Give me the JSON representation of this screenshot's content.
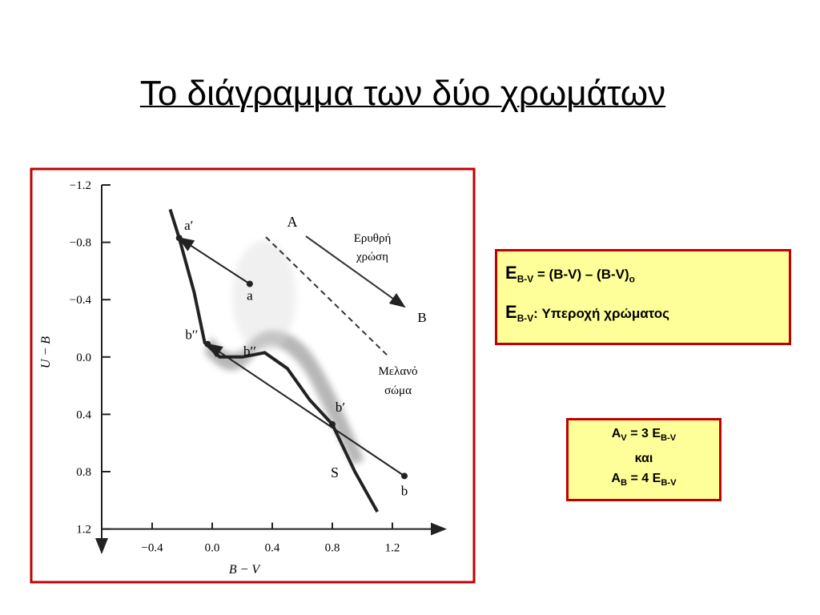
{
  "header": {
    "title": "Το διάγραμμα των δύο χρωμάτων"
  },
  "chart_data": {
    "type": "scatter",
    "x_label": "B − V",
    "y_label": "U − B",
    "xlim": [
      -0.74,
      1.58
    ],
    "ylim": [
      -1.2,
      1.4
    ],
    "y_inverted": true,
    "xticks": [
      {
        "value": -0.4,
        "label": "−0.4"
      },
      {
        "value": 0,
        "label": "0.0"
      },
      {
        "value": 0.4,
        "label": "0.4"
      },
      {
        "value": 0.8,
        "label": "0.8"
      },
      {
        "value": 1.2,
        "label": "1.2"
      }
    ],
    "yticks": [
      {
        "value": -1.2,
        "label": "−1.2"
      },
      {
        "value": -0.8,
        "label": "−0.8"
      },
      {
        "value": -0.4,
        "label": "−0.4"
      },
      {
        "value": 0,
        "label": "0.0"
      },
      {
        "value": 0.4,
        "label": "0.4"
      },
      {
        "value": 0.8,
        "label": "0.8"
      },
      {
        "value": 1.2,
        "label": "1.2"
      }
    ],
    "points": [
      {
        "label": "a",
        "x": 0.25,
        "y": -0.51
      },
      {
        "label": "a′",
        "x": -0.22,
        "y": -0.83
      },
      {
        "label": "b",
        "x": 1.28,
        "y": 0.83
      },
      {
        "label": "b′",
        "x": 0.8,
        "y": 0.47
      },
      {
        "label": "b′′",
        "x": -0.03,
        "y": -0.09
      }
    ],
    "curve": {
      "x": [
        -0.28,
        -0.22,
        -0.12,
        -0.05,
        0.05,
        0.2,
        0.35,
        0.5,
        0.65,
        0.8,
        0.95,
        1.1
      ],
      "y": [
        -1.03,
        -0.83,
        -0.45,
        -0.1,
        0.0,
        0.0,
        -0.03,
        0.08,
        0.3,
        0.47,
        0.8,
        1.08
      ]
    },
    "annotations": [
      "A",
      "B",
      "Ερυθρή",
      "χρώση",
      "Μελανό",
      "σώμα",
      "S",
      "b′′"
    ]
  },
  "boxes": [
    {
      "lines": [
        [
          "E",
          "B-V",
          " = (B-V) – (B-V)",
          "o"
        ],
        [
          "E",
          "B-V",
          ": Υπεροχή χρώματος"
        ]
      ]
    },
    {
      "lines": [
        [
          "A",
          "V",
          " = 3 E",
          "B-V"
        ],
        [
          "και"
        ],
        [
          "A",
          "B",
          " = 4 E",
          "B-V"
        ]
      ]
    }
  ]
}
